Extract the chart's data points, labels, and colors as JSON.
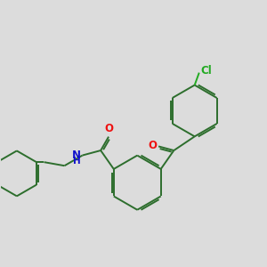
{
  "bg_color": "#dcdcdc",
  "bond_color": "#2d6e2d",
  "bond_width": 1.4,
  "atom_colors": {
    "O": "#ee1111",
    "N": "#1111cc",
    "Cl": "#22aa22",
    "C": "#2d6e2d"
  },
  "figsize": [
    3.0,
    3.0
  ],
  "dpi": 100
}
